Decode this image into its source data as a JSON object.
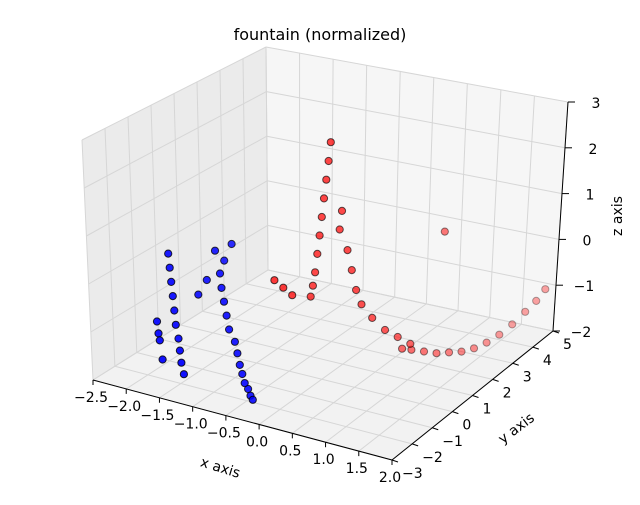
{
  "chart_data": {
    "type": "scatter3d",
    "title": "fountain (normalized)",
    "xlabel": "x axis",
    "ylabel": "y axis",
    "zlabel": "z axis",
    "xlim": [
      -2.5,
      2.0
    ],
    "ylim": [
      -3,
      5
    ],
    "zlim": [
      -2,
      3
    ],
    "x_ticks": [
      "−2.5",
      "−2.0",
      "−1.5",
      "−1.0",
      "−0.5",
      "0.0",
      "0.5",
      "1.0",
      "1.5",
      "2.0"
    ],
    "y_ticks": [
      "−3",
      "−2",
      "−1",
      "0",
      "1",
      "2",
      "3",
      "4",
      "5"
    ],
    "z_ticks": [
      "−2",
      "−1",
      "0",
      "1",
      "2",
      "3"
    ],
    "grid": true,
    "series": [
      {
        "color": "#0000ff",
        "points": [
          [
            -1.7,
            -1.8,
            0.55
          ],
          [
            -1.65,
            -1.9,
            0.3
          ],
          [
            -1.6,
            -2.0,
            0.05
          ],
          [
            -1.55,
            -2.1,
            -0.2
          ],
          [
            -1.5,
            -2.2,
            -0.45
          ],
          [
            -1.45,
            -2.3,
            -0.7
          ],
          [
            -1.4,
            -2.35,
            -0.95
          ],
          [
            -1.35,
            -2.45,
            -1.15
          ],
          [
            -1.3,
            -2.55,
            -1.35
          ],
          [
            -1.25,
            -2.6,
            -1.55
          ],
          [
            -1.6,
            -2.5,
            -1.4
          ],
          [
            -1.7,
            -2.3,
            -1.1
          ],
          [
            -1.8,
            -2.1,
            -0.8
          ],
          [
            -1.75,
            -2.2,
            -1.0
          ],
          [
            -0.9,
            -1.9,
            0.4
          ],
          [
            -0.85,
            -2.0,
            0.15
          ],
          [
            -0.8,
            -2.05,
            -0.1
          ],
          [
            -0.75,
            -2.1,
            -0.35
          ],
          [
            -0.7,
            -2.15,
            -0.6
          ],
          [
            -0.6,
            -2.2,
            -0.8
          ],
          [
            -0.55,
            -2.25,
            -1.0
          ],
          [
            -0.5,
            -2.3,
            -1.2
          ],
          [
            -0.45,
            -2.35,
            -1.35
          ],
          [
            -0.4,
            -2.4,
            -1.5
          ],
          [
            -0.35,
            -2.4,
            -1.6
          ],
          [
            -0.3,
            -2.45,
            -1.7
          ],
          [
            -0.25,
            -2.5,
            -1.75
          ],
          [
            -1.1,
            -1.5,
            0.7
          ],
          [
            -1.0,
            -1.4,
            0.5
          ],
          [
            -1.2,
            -1.6,
            0.1
          ],
          [
            -1.3,
            -1.7,
            -0.2
          ],
          [
            -0.95,
            -1.2,
            0.8
          ]
        ]
      },
      {
        "color": "#ff0000",
        "points": [
          [
            0.3,
            -0.5,
            3.0
          ],
          [
            0.25,
            -0.45,
            2.6
          ],
          [
            0.2,
            -0.4,
            2.2
          ],
          [
            0.15,
            -0.35,
            1.8
          ],
          [
            0.1,
            -0.3,
            1.4
          ],
          [
            0.05,
            -0.25,
            1.0
          ],
          [
            0.0,
            -0.2,
            0.6
          ],
          [
            -0.05,
            -0.15,
            0.2
          ],
          [
            -0.1,
            -0.1,
            -0.1
          ],
          [
            -0.15,
            -0.05,
            -0.35
          ],
          [
            0.4,
            -0.3,
            1.6
          ],
          [
            0.35,
            -0.25,
            1.2
          ],
          [
            0.45,
            -0.2,
            0.8
          ],
          [
            0.5,
            -0.15,
            0.4
          ],
          [
            0.55,
            -0.1,
            0.0
          ],
          [
            0.6,
            0.0,
            -0.3
          ],
          [
            0.7,
            0.2,
            -0.6
          ],
          [
            0.8,
            0.5,
            -0.9
          ],
          [
            0.9,
            0.8,
            -1.1
          ],
          [
            1.0,
            1.1,
            -1.3
          ],
          [
            0.75,
            1.5,
            -1.6
          ],
          [
            0.8,
            1.8,
            -1.7
          ],
          [
            0.9,
            2.1,
            -1.8
          ],
          [
            1.0,
            2.4,
            -1.9
          ],
          [
            1.1,
            2.7,
            -1.95
          ],
          [
            1.2,
            3.0,
            -2.0
          ],
          [
            1.3,
            3.3,
            -2.0
          ],
          [
            1.4,
            3.6,
            -1.95
          ],
          [
            1.5,
            3.9,
            -1.85
          ],
          [
            1.6,
            4.2,
            -1.7
          ],
          [
            1.7,
            4.5,
            -1.5
          ],
          [
            1.8,
            4.7,
            -1.3
          ],
          [
            1.9,
            4.8,
            -1.05
          ],
          [
            1.2,
            2.0,
            0.8
          ],
          [
            -0.25,
            -0.6,
            -0.2
          ],
          [
            -0.35,
            -0.7,
            -0.05
          ],
          [
            -0.45,
            -0.8,
            0.1
          ]
        ]
      }
    ]
  }
}
